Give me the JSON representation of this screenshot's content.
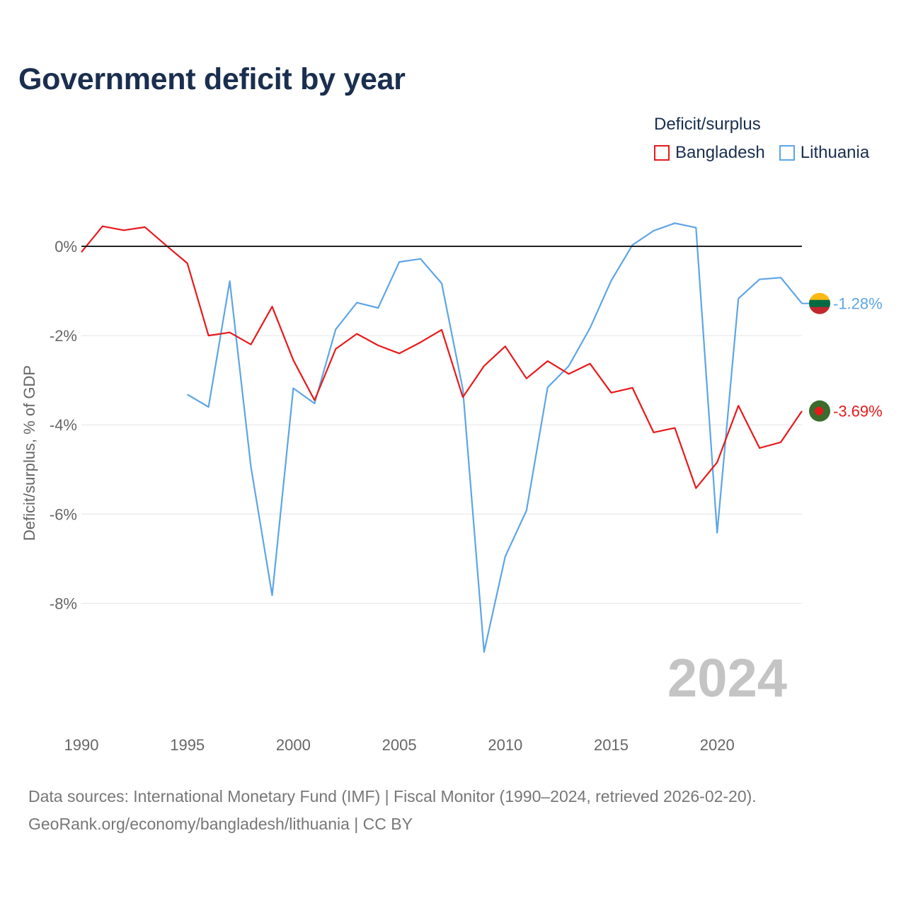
{
  "title": "Government deficit by year",
  "legend": {
    "title": "Deficit/surplus",
    "items": [
      {
        "label": "Bangladesh",
        "color": "#e8191b"
      },
      {
        "label": "Lithuania",
        "color": "#5da5e8"
      }
    ]
  },
  "year_watermark": "2024",
  "footer": {
    "sources": "Data sources: International Monetary Fund (IMF) | Fiscal Monitor (1990–2024, retrieved 2026-02-20).",
    "credit": "GeoRank.org/economy/bangladesh/lithuania | CC BY"
  },
  "chart_data": {
    "type": "line",
    "title": "Government deficit by year",
    "xlabel": "",
    "ylabel": "Deficit/surplus, % of GDP",
    "xlim": [
      1990,
      2024
    ],
    "ylim": [
      -10.5,
      1
    ],
    "x_ticks": [
      1990,
      1995,
      2000,
      2005,
      2010,
      2015,
      2020
    ],
    "y_ticks": [
      0,
      -2,
      -4,
      -6,
      -8
    ],
    "y_tick_labels": [
      "0%",
      "-2%",
      "-4%",
      "-6%",
      "-8%"
    ],
    "grid": true,
    "legend_position": "top-right",
    "series": [
      {
        "name": "Bangladesh",
        "color": "#e8191b",
        "end_label": "-3.69%",
        "x": [
          1990,
          1991,
          1992,
          1993,
          1994,
          1995,
          1996,
          1997,
          1998,
          1999,
          2000,
          2001,
          2002,
          2003,
          2004,
          2005,
          2006,
          2007,
          2008,
          2009,
          2010,
          2011,
          2012,
          2013,
          2014,
          2015,
          2016,
          2017,
          2018,
          2019,
          2020,
          2021,
          2022,
          2023,
          2024
        ],
        "values": [
          -0.13,
          0.45,
          0.36,
          0.43,
          0.02,
          -0.38,
          -2.0,
          -1.93,
          -2.2,
          -1.35,
          -2.55,
          -3.45,
          -2.3,
          -1.96,
          -2.22,
          -2.4,
          -2.15,
          -1.87,
          -3.38,
          -2.68,
          -2.24,
          -2.96,
          -2.57,
          -2.86,
          -2.63,
          -3.28,
          -3.17,
          -4.17,
          -4.07,
          -5.42,
          -4.84,
          -3.57,
          -4.52,
          -4.39,
          -3.69
        ]
      },
      {
        "name": "Lithuania",
        "color": "#5da5e8",
        "end_label": "-1.28%",
        "x": [
          1995,
          1996,
          1997,
          1998,
          1999,
          2000,
          2001,
          2002,
          2003,
          2004,
          2005,
          2006,
          2007,
          2008,
          2009,
          2010,
          2011,
          2012,
          2013,
          2014,
          2015,
          2016,
          2017,
          2018,
          2019,
          2020,
          2021,
          2022,
          2023,
          2024
        ],
        "values": [
          -3.32,
          -3.6,
          -0.78,
          -4.94,
          -7.82,
          -3.18,
          -3.52,
          -1.86,
          -1.26,
          -1.38,
          -0.35,
          -0.28,
          -0.83,
          -3.2,
          -9.09,
          -6.95,
          -5.92,
          -3.16,
          -2.68,
          -1.83,
          -0.77,
          0.03,
          0.35,
          0.52,
          0.42,
          -6.42,
          -1.17,
          -0.74,
          -0.7,
          -1.28
        ]
      }
    ]
  }
}
